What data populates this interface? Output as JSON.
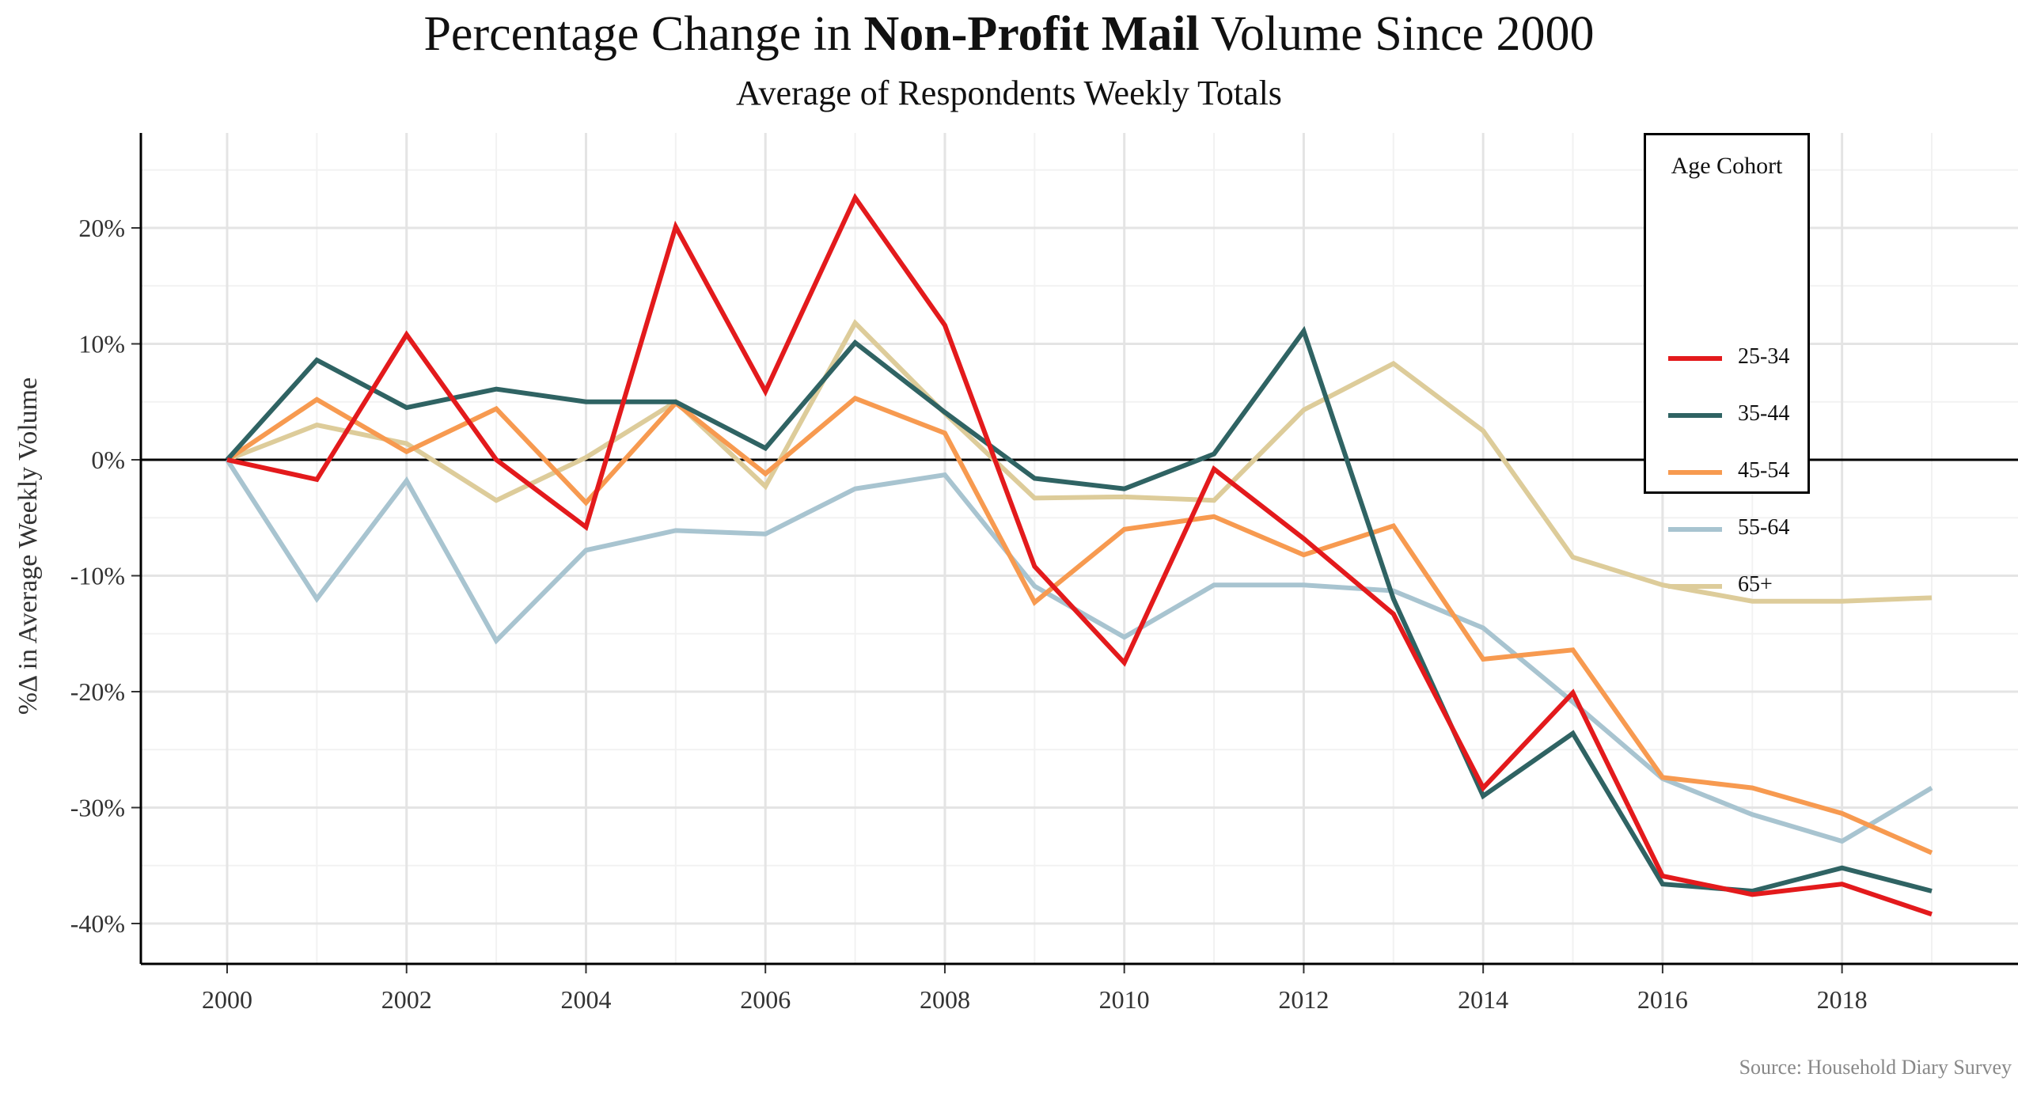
{
  "header": {
    "title_prefix": "Percentage Change in ",
    "title_bold": "Non-Profit Mail",
    "title_suffix": " Volume Since 2000",
    "subtitle": "Average of Respondents Weekly Totals"
  },
  "footer": {
    "source": "Source: Household Diary Survey"
  },
  "legend": {
    "title": "Age Cohort",
    "items": [
      {
        "label": "25-34",
        "color": "#E31A1C"
      },
      {
        "label": "35-44",
        "color": "#2F6363"
      },
      {
        "label": "45-54",
        "color": "#F79A50"
      },
      {
        "label": "55-64",
        "color": "#A8C4D0"
      },
      {
        "label": "65+",
        "color": "#DDCC9A"
      }
    ]
  },
  "chart_data": {
    "type": "line",
    "title": "Percentage Change in Non-Profit Mail Volume Since 2000",
    "subtitle": "Average of Respondents Weekly Totals",
    "xlabel": "",
    "ylabel": "%Δ in Average Weekly Volume",
    "xlim": [
      2000,
      2019
    ],
    "ylim": [
      -40,
      25
    ],
    "x_ticks": [
      2000,
      2002,
      2004,
      2006,
      2008,
      2010,
      2012,
      2014,
      2016,
      2018
    ],
    "y_ticks": [
      -40,
      -30,
      -20,
      -10,
      0,
      10,
      20
    ],
    "y_tick_labels": [
      "-40%",
      "-30%",
      "-20%",
      "-10%",
      "0%",
      "10%",
      "20%"
    ],
    "grid": true,
    "legend_position": "top-right",
    "x": [
      2000,
      2001,
      2002,
      2003,
      2004,
      2005,
      2006,
      2007,
      2008,
      2009,
      2010,
      2011,
      2012,
      2013,
      2014,
      2015,
      2016,
      2017,
      2018,
      2019
    ],
    "series": [
      {
        "name": "25-34",
        "color": "#E31A1C",
        "values": [
          0,
          -1.7,
          10.8,
          0,
          -5.8,
          20.1,
          5.9,
          22.6,
          11.6,
          -9.2,
          -17.5,
          -0.8,
          -6.8,
          -13.3,
          -28.3,
          -20.1,
          -35.9,
          -37.5,
          -36.6,
          -39.2
        ]
      },
      {
        "name": "35-44",
        "color": "#2F6363",
        "values": [
          0,
          8.6,
          4.5,
          6.1,
          5.0,
          5.0,
          1.0,
          10.1,
          4.1,
          -1.6,
          -2.5,
          0.5,
          11.1,
          -12.0,
          -29.0,
          -23.6,
          -36.6,
          -37.2,
          -35.2,
          -37.2
        ]
      },
      {
        "name": "45-54",
        "color": "#F79A50",
        "values": [
          0,
          5.2,
          0.7,
          4.4,
          -3.7,
          4.9,
          -1.2,
          5.3,
          2.3,
          -12.3,
          -6.0,
          -4.9,
          -8.2,
          -5.7,
          -17.2,
          -16.4,
          -27.4,
          -28.3,
          -30.5,
          -33.9
        ]
      },
      {
        "name": "55-64",
        "color": "#A8C4D0",
        "values": [
          0,
          -12.0,
          -1.8,
          -15.6,
          -7.8,
          -6.1,
          -6.4,
          -2.5,
          -1.3,
          -10.9,
          -15.3,
          -10.8,
          -10.8,
          -11.3,
          -14.5,
          -20.9,
          -27.5,
          -30.6,
          -32.9,
          -28.3
        ]
      },
      {
        "name": "65+",
        "color": "#DDCC9A",
        "values": [
          0,
          3.0,
          1.4,
          -3.5,
          0.2,
          5.0,
          -2.3,
          11.8,
          4.0,
          -3.3,
          -3.2,
          -3.5,
          4.3,
          8.3,
          2.5,
          -8.4,
          -10.8,
          -12.2,
          -12.2,
          -11.9
        ]
      }
    ]
  }
}
